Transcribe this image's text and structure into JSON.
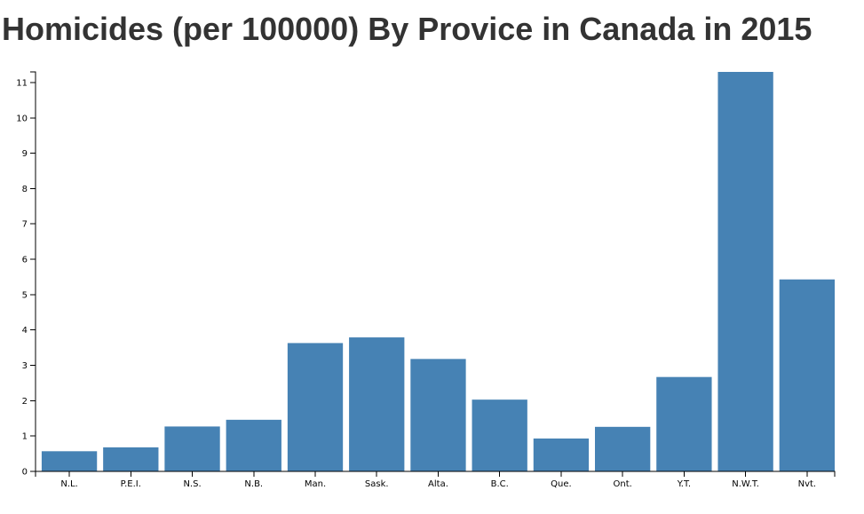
{
  "chart_data": {
    "type": "bar",
    "title": "Homicides (per 100000) By Provice in Canada in 2015",
    "xlabel": "",
    "ylabel": "",
    "categories": [
      "N.L.",
      "P.E.I.",
      "N.S.",
      "N.B.",
      "Man.",
      "Sask.",
      "Alta.",
      "B.C.",
      "Que.",
      "Ont.",
      "Y.T.",
      "N.W.T.",
      "Nvt."
    ],
    "values": [
      0.57,
      0.68,
      1.27,
      1.46,
      3.63,
      3.79,
      3.18,
      2.03,
      0.93,
      1.26,
      2.67,
      11.3,
      5.43
    ],
    "ylim": [
      0,
      11.3
    ],
    "yticks": [
      0,
      1,
      2,
      3,
      4,
      5,
      6,
      7,
      8,
      9,
      10,
      11
    ],
    "grid": false,
    "bar_color": "#4682b4"
  }
}
